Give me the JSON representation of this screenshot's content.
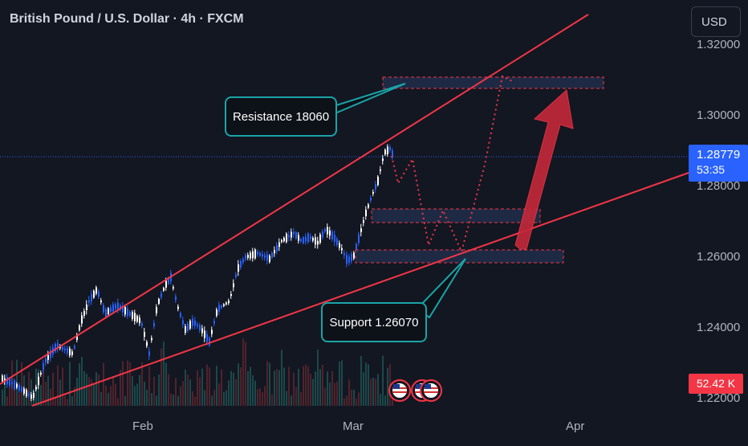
{
  "header": {
    "symbol_title": "British Pound / U.S. Dollar · 4h · FXCM",
    "currency_button": "USD"
  },
  "price_axis": {
    "labels": [
      "1.32000",
      "1.30000",
      "1.28000",
      "1.26000",
      "1.24000",
      "1.22000"
    ]
  },
  "time_axis": {
    "labels": [
      "Feb",
      "Mar",
      "Apr"
    ]
  },
  "current_price": {
    "price": "1.28779",
    "countdown": "53:35",
    "color": "#2962ff"
  },
  "volume": {
    "label": "52.42 K",
    "color": "#f23645"
  },
  "annotations": {
    "resistance": "Resistance 18060",
    "support": "Support 1.26070"
  },
  "colors": {
    "background": "#131722",
    "trendline": "#f23645",
    "zone_fill": "#1e2a44",
    "zone_border": "#f23645",
    "callout_border": "#1aa4a8",
    "bull_candle": "#ffffff",
    "bear_candle": "#2962ff",
    "arrow": "#c4283a"
  },
  "event_icons": [
    "us-flag-icon",
    "us-flag-icon",
    "us-flag-icon"
  ]
}
